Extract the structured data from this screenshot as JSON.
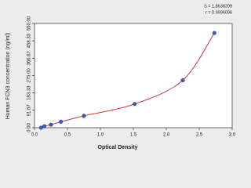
{
  "chart_data": {
    "type": "scatter",
    "x_label": "Optical Density",
    "y_label": "Human FCN3 concentration (ng/ml)",
    "annotations": [
      "S = 1.8638209",
      "r = 0.9996096"
    ],
    "x": [
      0.1,
      0.15,
      0.25,
      0.4,
      0.75,
      1.52,
      2.25,
      2.73
    ],
    "values": [
      0,
      7.8,
      15.6,
      31.25,
      62.5,
      125,
      250,
      500
    ],
    "color": "#3a5fcd",
    "line_color": "#cc2222",
    "curve": true,
    "xlim": [
      0,
      3
    ],
    "xticks": [
      {
        "value": 0,
        "label": "0.0"
      },
      {
        "value": 0.5,
        "label": "0.5"
      },
      {
        "value": 1,
        "label": "1.0"
      },
      {
        "value": 1.5,
        "label": "1.5"
      },
      {
        "value": 2,
        "label": "2.0"
      },
      {
        "value": 2.5,
        "label": "2.5"
      },
      {
        "value": 3,
        "label": "3.0"
      }
    ],
    "ylim": [
      0,
      550
    ],
    "yticks": [
      {
        "value": 0,
        "label": "0.00"
      },
      91.67,
      183.33,
      {
        "value": 275,
        "label": "275.00"
      },
      366.67,
      458.33,
      {
        "value": 550,
        "label": "550.00"
      }
    ],
    "grid": false
  }
}
